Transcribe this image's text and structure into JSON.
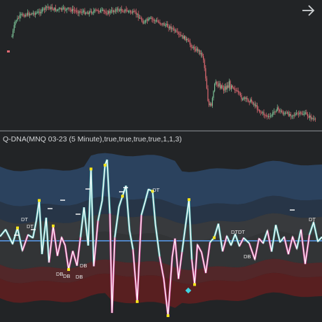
{
  "indicator_title": "Q-DNA(MNQ 03-23 (5 Minute),true,true,true,true,1,1,3)",
  "nav": {
    "icon": "arrow-right-icon"
  },
  "colors": {
    "background": "#222426",
    "candle_up": "#7ec699",
    "candle_down": "#e06a72",
    "zero_line": "#5b9df0",
    "osc_line": "#ffffff",
    "osc_pos": "#57c7c2",
    "osc_neg": "#d9459b",
    "band_blue": "#2f4c72",
    "band_gray": "#4a4d51",
    "band_red": "#6b1d1f",
    "marker": "#f2e21b"
  },
  "signals": [
    {
      "label": "DT"
    },
    {
      "label": "DT"
    },
    {
      "label": "DT"
    },
    {
      "label": "DT"
    },
    {
      "label": "DT"
    },
    {
      "label": "DT"
    },
    {
      "label": "DB"
    },
    {
      "label": "DB"
    },
    {
      "label": "DB"
    },
    {
      "label": "DB"
    },
    {
      "label": "DB"
    }
  ]
}
